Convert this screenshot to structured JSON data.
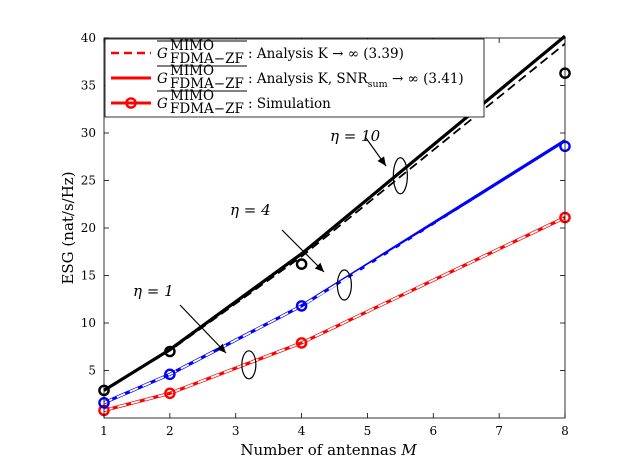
{
  "chart_data": {
    "type": "line",
    "title": "",
    "xlabel": "Number of antennas",
    "xlabel_var": "M",
    "ylabel": "ESG (nat/s/Hz)",
    "xlim": [
      1,
      8
    ],
    "ylim": [
      0,
      40
    ],
    "x_ticks": [
      1,
      2,
      3,
      4,
      5,
      6,
      7,
      8
    ],
    "y_ticks": [
      5,
      10,
      15,
      20,
      25,
      30,
      35,
      40
    ],
    "grid": false,
    "legend_position": "top-left",
    "legend": [
      {
        "style": "dashed",
        "color": "#ff0000",
        "label_main": "G",
        "label_sup": "MIMO",
        "label_sub": "FDMA−ZF",
        "label_rest": ": Analysis K → ∞ (3.39)"
      },
      {
        "style": "solid",
        "color": "#ff0000",
        "label_main": "G",
        "label_sup": "MIMO",
        "label_sub": "FDMA−ZF",
        "label_rest": ": Analysis K, SNR",
        "label_rest_sub": "sum",
        "label_rest_tail": " → ∞ (3.41)"
      },
      {
        "style": "marker",
        "color": "#ff0000",
        "label_main": "G",
        "label_sup": "MIMO",
        "label_sub": "FDMA−ZF",
        "label_rest": ": Simulation"
      }
    ],
    "x": [
      1,
      2,
      4,
      8
    ],
    "series": [
      {
        "name": "η = 1 analysis K→∞",
        "eta": 1,
        "style": "dashed",
        "color": "#ffffff",
        "values": [
          0.8,
          2.6,
          7.9,
          21.1
        ]
      },
      {
        "name": "η = 1 analysis K,SNR→∞",
        "eta": 1,
        "style": "solid",
        "color": "#ff0000",
        "values": [
          0.8,
          2.6,
          7.9,
          21.1
        ]
      },
      {
        "name": "η = 1 simulation",
        "eta": 1,
        "style": "marker",
        "color": "#ff0000",
        "values": [
          0.8,
          2.6,
          7.9,
          21.1
        ]
      },
      {
        "name": "η = 4 analysis K,SNR→∞",
        "eta": 4,
        "style": "solid",
        "color": "#0000ff",
        "values": [
          1.6,
          4.6,
          11.8,
          29.2
        ]
      },
      {
        "name": "η = 4 analysis K→∞",
        "eta": 4,
        "style": "dashed",
        "color": "#ffffff",
        "values": [
          1.6,
          4.6,
          11.8,
          28.7
        ]
      },
      {
        "name": "η = 4 simulation",
        "eta": 4,
        "style": "marker",
        "color": "#0000ff",
        "values": [
          1.6,
          4.6,
          11.8,
          28.6
        ]
      },
      {
        "name": "η = 10 analysis K,SNR→∞",
        "eta": 10,
        "style": "solid",
        "color": "#000000",
        "values": [
          2.9,
          7.2,
          17.3,
          40.2
        ]
      },
      {
        "name": "η = 10 analysis K→∞",
        "eta": 10,
        "style": "dashed",
        "color": "#000000",
        "values": [
          2.9,
          7.1,
          17.0,
          39.4
        ]
      },
      {
        "name": "η = 10 simulation",
        "eta": 10,
        "style": "marker",
        "color": "#000000",
        "values": [
          2.9,
          7.0,
          16.2,
          36.3
        ]
      }
    ],
    "annotations": [
      {
        "text": "η = 1",
        "group_x": 3.2,
        "group_y": 5.6
      },
      {
        "text": "η = 4",
        "group_x": 4.65,
        "group_y": 14.0
      },
      {
        "text": "η = 10",
        "group_x": 5.5,
        "group_y": 25.5
      }
    ]
  }
}
